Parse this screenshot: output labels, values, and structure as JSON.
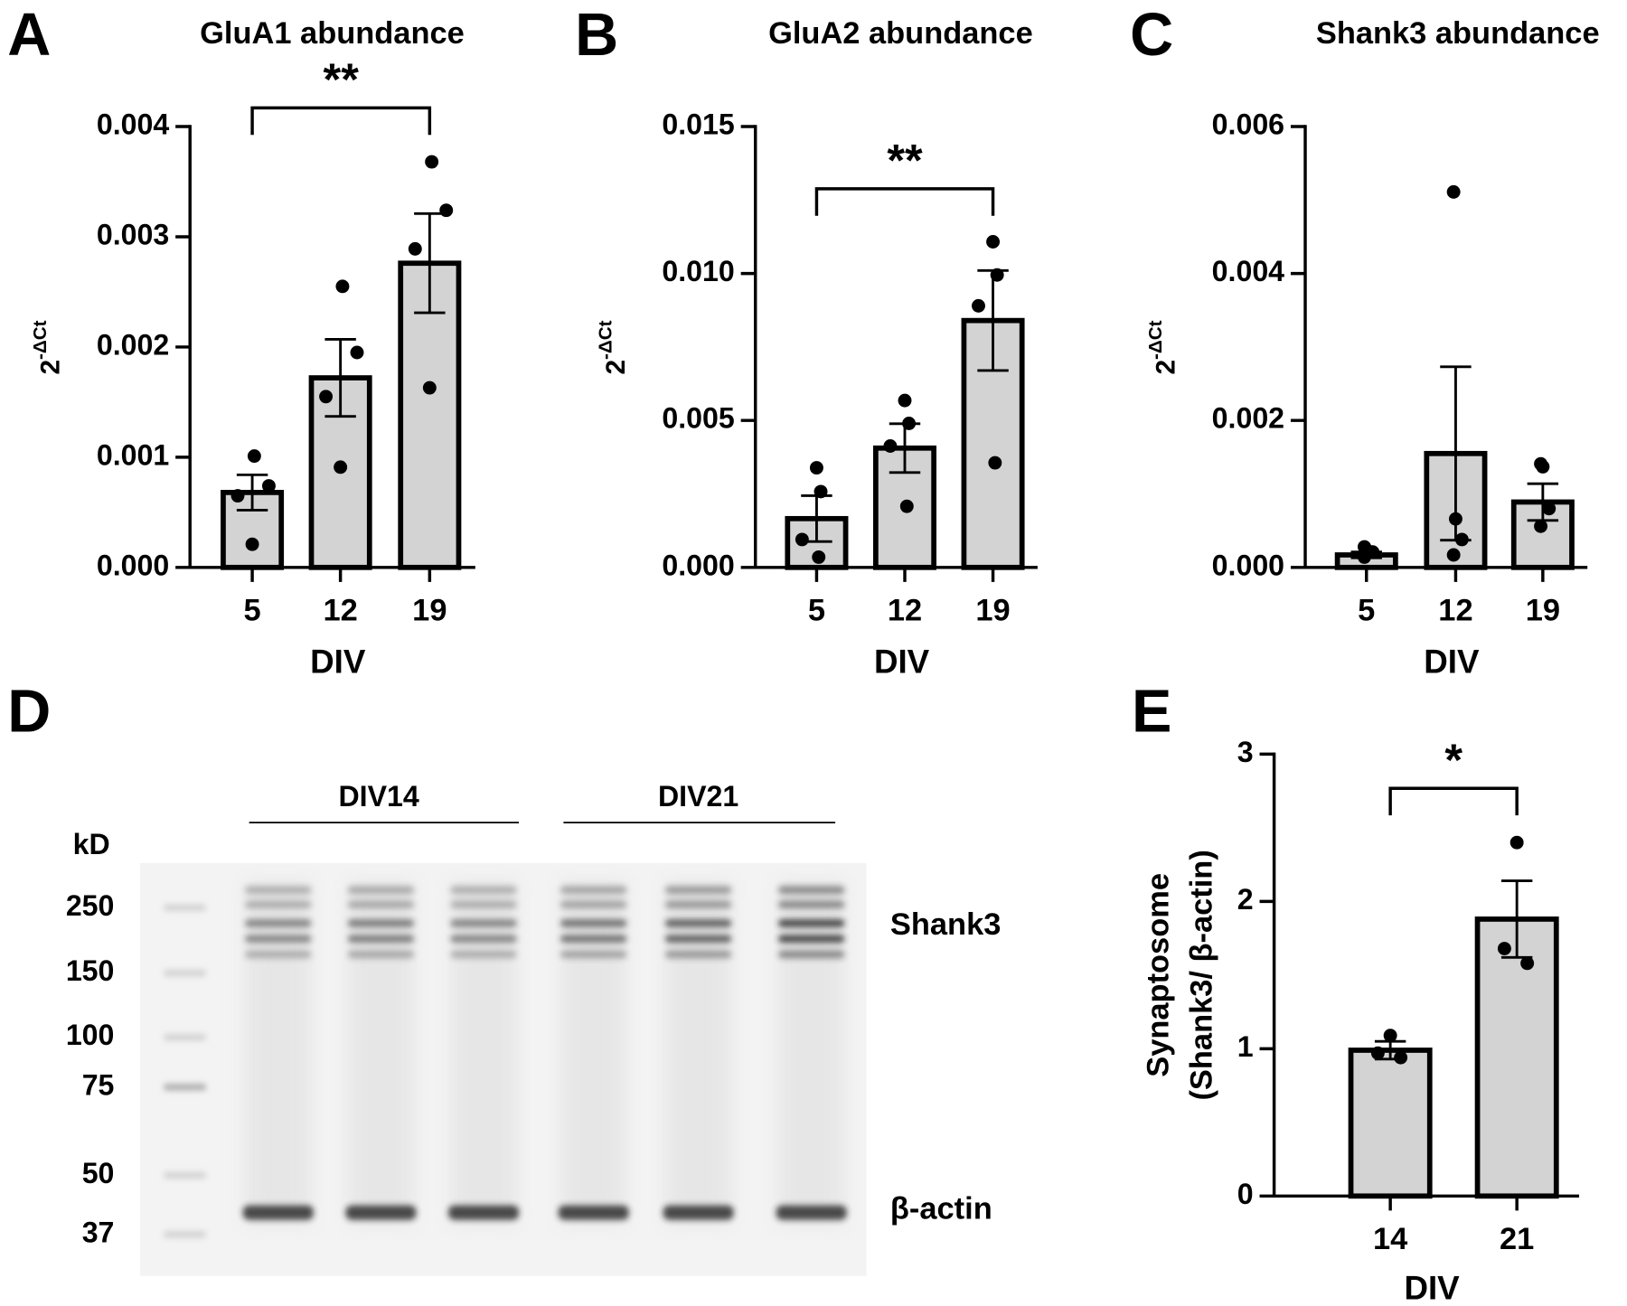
{
  "chart_data": [
    {
      "type": "bar",
      "panel": "A",
      "title": "GluA1 abundance",
      "ylabel": {
        "base": "2",
        "sup": "-ΔCt"
      },
      "xlabel": "DIV",
      "categories": [
        "5",
        "12",
        "19"
      ],
      "values": [
        0.00068,
        0.00172,
        0.00276
      ],
      "errors": [
        0.00016,
        0.00035,
        0.00045
      ],
      "points": [
        [
          0.00101,
          0.00074,
          0.00065,
          0.00021
        ],
        [
          0.00255,
          0.00195,
          0.00155,
          0.00091
        ],
        [
          0.00368,
          0.00324,
          0.00289,
          0.00163
        ]
      ],
      "color": "#d3d3d3",
      "ylim": [
        0,
        0.004
      ],
      "yticks": [
        {
          "value": 0,
          "label": "0.000"
        },
        {
          "value": 0.001,
          "label": "0.001"
        },
        {
          "value": 0.002,
          "label": "0.002"
        },
        {
          "value": 0.003,
          "label": "0.003"
        },
        {
          "value": 0.004,
          "label": "0.004"
        }
      ],
      "bracket": {
        "label": "**",
        "between": [
          0,
          2
        ]
      }
    },
    {
      "type": "bar",
      "panel": "B",
      "title": "GluA2 abundance",
      "ylabel": {
        "base": "2",
        "sup": "-ΔCt"
      },
      "xlabel": "DIV",
      "categories": [
        "5",
        "12",
        "19"
      ],
      "values": [
        0.00166,
        0.00406,
        0.0084
      ],
      "errors": [
        0.00078,
        0.00083,
        0.0017
      ],
      "points": [
        [
          0.00339,
          0.00258,
          0.00095,
          0.00035
        ],
        [
          0.00568,
          0.0049,
          0.00413,
          0.00208
        ],
        [
          0.01108,
          0.00995,
          0.0089,
          0.00356
        ]
      ],
      "color": "#d3d3d3",
      "ylim": [
        0,
        0.015
      ],
      "yticks": [
        {
          "value": 0,
          "label": "0.000"
        },
        {
          "value": 0.005,
          "label": "0.005"
        },
        {
          "value": 0.01,
          "label": "0.010"
        },
        {
          "value": 0.015,
          "label": "0.015"
        }
      ],
      "bracket": {
        "label": "**",
        "between": [
          0,
          2
        ]
      }
    },
    {
      "type": "bar",
      "panel": "C",
      "title": "Shank3 abundance",
      "ylabel": {
        "base": "2",
        "sup": "-ΔCt"
      },
      "xlabel": "DIV",
      "categories": [
        "5",
        "12",
        "19"
      ],
      "values": [
        0.00017,
        0.00155,
        0.00089
      ],
      "errors": [
        4e-05,
        0.00118,
        0.00025
      ],
      "points": [
        [
          0.00028,
          0.00024,
          0.00021,
          0.00014
        ],
        [
          0.00511,
          0.00066,
          0.00038,
          0.00017
        ],
        [
          0.00141,
          0.00137,
          0.0008,
          0.00056
        ]
      ],
      "color": "#d3d3d3",
      "ylim": [
        0,
        0.006
      ],
      "yticks": [
        {
          "value": 0,
          "label": "0.000"
        },
        {
          "value": 0.002,
          "label": "0.002"
        },
        {
          "value": 0.004,
          "label": "0.004"
        },
        {
          "value": 0.006,
          "label": "0.006"
        }
      ]
    },
    {
      "type": "bar",
      "panel": "E",
      "ylabel": {
        "lines": [
          "Synaptosome",
          "(Shank3/ β-actin)"
        ]
      },
      "xlabel": "DIV",
      "categories": [
        "14",
        "21"
      ],
      "values": [
        0.99,
        1.88
      ],
      "errors": [
        0.06,
        0.26
      ],
      "points": [
        [
          1.09,
          0.97,
          0.94
        ],
        [
          2.4,
          1.68,
          1.58
        ]
      ],
      "color": "#d3d3d3",
      "ylim": [
        0,
        3
      ],
      "yticks": [
        0,
        1,
        2,
        3
      ],
      "bracket": {
        "label": "*",
        "between": [
          0,
          1
        ]
      }
    }
  ],
  "blot": {
    "panel": "D",
    "groups": [
      "DIV14",
      "DIV21"
    ],
    "unit": "kD",
    "markers": [
      "250",
      "150",
      "100",
      "75",
      "50",
      "37"
    ],
    "bands": [
      "Shank3",
      "β-actin"
    ]
  }
}
